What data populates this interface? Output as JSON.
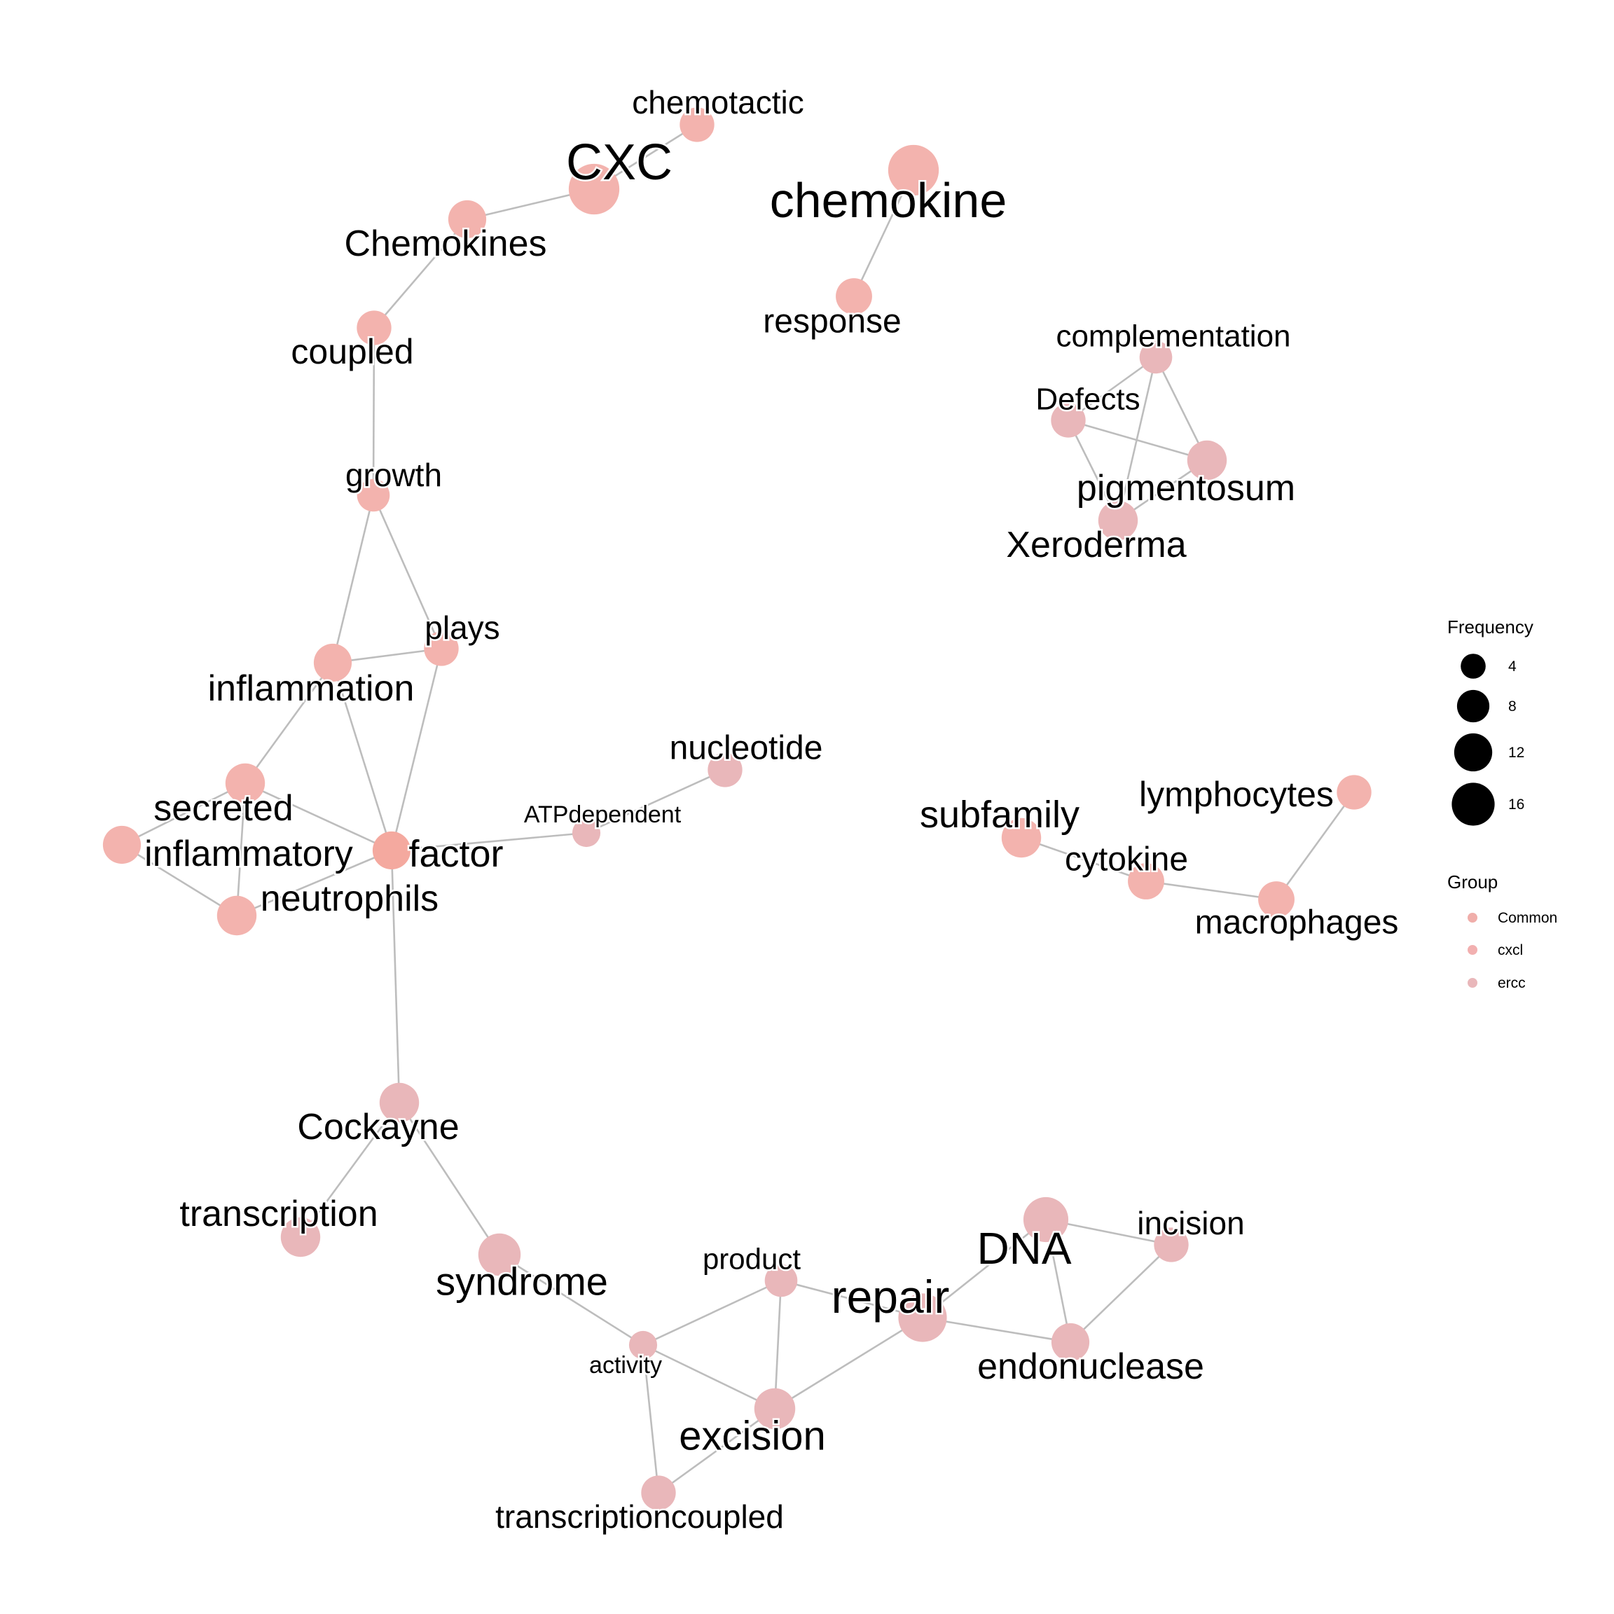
{
  "legend": {
    "frequency_title": "Frequency",
    "frequency_items": [
      {
        "label": "4",
        "value": 4
      },
      {
        "label": "8",
        "value": 8
      },
      {
        "label": "12",
        "value": 12
      },
      {
        "label": "16",
        "value": 16
      }
    ],
    "group_title": "Group",
    "group_items": [
      {
        "label": "Common",
        "color": "#F0AEAA"
      },
      {
        "label": "cxcl",
        "color": "#F2B0B0"
      },
      {
        "label": "ercc",
        "color": "#E9B7BA"
      }
    ]
  },
  "colors": {
    "edge": "#BDBDBD",
    "cxcl": "#F3B3AE",
    "ercc": "#E9B7BA",
    "common": "#F4A99F"
  },
  "network": {
    "nodes": [
      {
        "id": "chemotactic",
        "label": "chemotactic",
        "freq": 6,
        "group": "cxcl"
      },
      {
        "id": "CXC",
        "label": "CXC",
        "freq": 18,
        "group": "cxcl"
      },
      {
        "id": "Chemokines",
        "label": "Chemokines",
        "freq": 8,
        "group": "cxcl"
      },
      {
        "id": "coupled",
        "label": "coupled",
        "freq": 6,
        "group": "cxcl"
      },
      {
        "id": "chemokine",
        "label": "chemokine",
        "freq": 18,
        "group": "cxcl"
      },
      {
        "id": "response",
        "label": "response",
        "freq": 7,
        "group": "cxcl"
      },
      {
        "id": "complementation",
        "label": "complementation",
        "freq": 5,
        "group": "ercc"
      },
      {
        "id": "Defects",
        "label": "Defects",
        "freq": 6,
        "group": "ercc"
      },
      {
        "id": "pigmentosum",
        "label": "pigmentosum",
        "freq": 9,
        "group": "ercc"
      },
      {
        "id": "Xeroderma",
        "label": "Xeroderma",
        "freq": 9,
        "group": "ercc"
      },
      {
        "id": "growth",
        "label": "growth",
        "freq": 5,
        "group": "cxcl"
      },
      {
        "id": "plays",
        "label": "plays",
        "freq": 6,
        "group": "cxcl"
      },
      {
        "id": "inflammation",
        "label": "inflammation",
        "freq": 8,
        "group": "cxcl"
      },
      {
        "id": "nucleotide",
        "label": "nucleotide",
        "freq": 6,
        "group": "ercc"
      },
      {
        "id": "ATPdependent",
        "label": "ATPdependent",
        "freq": 3,
        "group": "ercc"
      },
      {
        "id": "secreted",
        "label": "secreted",
        "freq": 9,
        "group": "cxcl"
      },
      {
        "id": "inflammatory",
        "label": "inflammatory",
        "freq": 8,
        "group": "cxcl"
      },
      {
        "id": "factor",
        "label": "factor",
        "freq": 8,
        "group": "common"
      },
      {
        "id": "neutrophils",
        "label": "neutrophils",
        "freq": 9,
        "group": "cxcl"
      },
      {
        "id": "subfamily",
        "label": "subfamily",
        "freq": 9,
        "group": "cxcl"
      },
      {
        "id": "lymphocytes",
        "label": "lymphocytes",
        "freq": 6,
        "group": "cxcl"
      },
      {
        "id": "cytokine",
        "label": "cytokine",
        "freq": 7,
        "group": "cxcl"
      },
      {
        "id": "macrophages",
        "label": "macrophages",
        "freq": 7,
        "group": "cxcl"
      },
      {
        "id": "Cockayne",
        "label": "Cockayne",
        "freq": 9,
        "group": "ercc"
      },
      {
        "id": "transcription",
        "label": "transcription",
        "freq": 9,
        "group": "ercc"
      },
      {
        "id": "syndrome",
        "label": "syndrome",
        "freq": 11,
        "group": "ercc"
      },
      {
        "id": "DNA",
        "label": "DNA",
        "freq": 13,
        "group": "ercc"
      },
      {
        "id": "incision",
        "label": "incision",
        "freq": 6,
        "group": "ercc"
      },
      {
        "id": "product",
        "label": "product",
        "freq": 5,
        "group": "ercc"
      },
      {
        "id": "repair",
        "label": "repair",
        "freq": 16,
        "group": "ercc"
      },
      {
        "id": "activity",
        "label": "activity",
        "freq": 3,
        "group": "ercc"
      },
      {
        "id": "endonuclease",
        "label": "endonuclease",
        "freq": 8,
        "group": "ercc"
      },
      {
        "id": "excision",
        "label": "excision",
        "freq": 10,
        "group": "ercc"
      },
      {
        "id": "transcriptioncoupled",
        "label": "transcriptioncoupled",
        "freq": 6,
        "group": "ercc"
      }
    ],
    "edges": [
      [
        "chemotactic",
        "CXC"
      ],
      [
        "CXC",
        "Chemokines"
      ],
      [
        "Chemokines",
        "coupled"
      ],
      [
        "coupled",
        "growth"
      ],
      [
        "chemokine",
        "response"
      ],
      [
        "complementation",
        "Defects"
      ],
      [
        "complementation",
        "pigmentosum"
      ],
      [
        "complementation",
        "Xeroderma"
      ],
      [
        "Defects",
        "pigmentosum"
      ],
      [
        "Defects",
        "Xeroderma"
      ],
      [
        "pigmentosum",
        "Xeroderma"
      ],
      [
        "growth",
        "inflammation"
      ],
      [
        "growth",
        "plays"
      ],
      [
        "plays",
        "inflammation"
      ],
      [
        "plays",
        "factor"
      ],
      [
        "inflammation",
        "factor"
      ],
      [
        "inflammation",
        "secreted"
      ],
      [
        "secreted",
        "factor"
      ],
      [
        "secreted",
        "inflammatory"
      ],
      [
        "secreted",
        "neutrophils"
      ],
      [
        "inflammatory",
        "neutrophils"
      ],
      [
        "neutrophils",
        "factor"
      ],
      [
        "factor",
        "ATPdependent"
      ],
      [
        "ATPdependent",
        "nucleotide"
      ],
      [
        "factor",
        "Cockayne"
      ],
      [
        "lymphocytes",
        "macrophages"
      ],
      [
        "cytokine",
        "macrophages"
      ],
      [
        "subfamily",
        "cytokine"
      ],
      [
        "Cockayne",
        "transcription"
      ],
      [
        "Cockayne",
        "syndrome"
      ],
      [
        "syndrome",
        "activity"
      ],
      [
        "activity",
        "product"
      ],
      [
        "activity",
        "excision"
      ],
      [
        "activity",
        "transcriptioncoupled"
      ],
      [
        "product",
        "excision"
      ],
      [
        "product",
        "repair"
      ],
      [
        "excision",
        "repair"
      ],
      [
        "excision",
        "transcriptioncoupled"
      ],
      [
        "repair",
        "DNA"
      ],
      [
        "repair",
        "endonuclease"
      ],
      [
        "DNA",
        "incision"
      ],
      [
        "DNA",
        "endonuclease"
      ],
      [
        "incision",
        "endonuclease"
      ]
    ]
  }
}
